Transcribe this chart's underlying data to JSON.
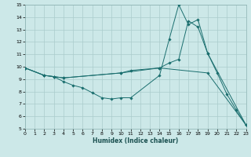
{
  "xlabel": "Humidex (Indice chaleur)",
  "bg_color": "#cce8e8",
  "grid_color": "#aacccc",
  "line_color": "#1a6e6e",
  "xlim": [
    0,
    23
  ],
  "ylim": [
    5,
    15
  ],
  "xticks": [
    0,
    1,
    2,
    3,
    4,
    5,
    6,
    7,
    8,
    9,
    10,
    11,
    12,
    13,
    14,
    15,
    16,
    17,
    18,
    19,
    20,
    21,
    22,
    23
  ],
  "yticks": [
    5,
    6,
    7,
    8,
    9,
    10,
    11,
    12,
    13,
    14,
    15
  ],
  "series": [
    {
      "x": [
        0,
        2,
        3,
        4,
        5,
        6,
        7,
        8,
        9,
        10,
        11,
        14,
        15,
        16,
        17,
        18,
        19,
        20,
        21,
        22,
        23
      ],
      "y": [
        9.9,
        9.3,
        9.2,
        8.8,
        8.5,
        8.3,
        7.9,
        7.5,
        7.4,
        7.5,
        7.5,
        9.3,
        12.2,
        15.0,
        13.4,
        13.8,
        11.1,
        9.5,
        7.8,
        6.5,
        5.3
      ]
    },
    {
      "x": [
        0,
        2,
        3,
        4,
        10,
        11,
        14,
        15,
        16,
        17,
        18,
        19,
        23
      ],
      "y": [
        9.9,
        9.3,
        9.2,
        9.1,
        9.5,
        9.7,
        9.9,
        10.3,
        10.6,
        13.7,
        13.2,
        11.1,
        5.3
      ]
    },
    {
      "x": [
        0,
        2,
        3,
        4,
        10,
        14,
        19,
        23
      ],
      "y": [
        9.9,
        9.3,
        9.2,
        9.1,
        9.5,
        9.9,
        9.5,
        5.3
      ]
    }
  ]
}
